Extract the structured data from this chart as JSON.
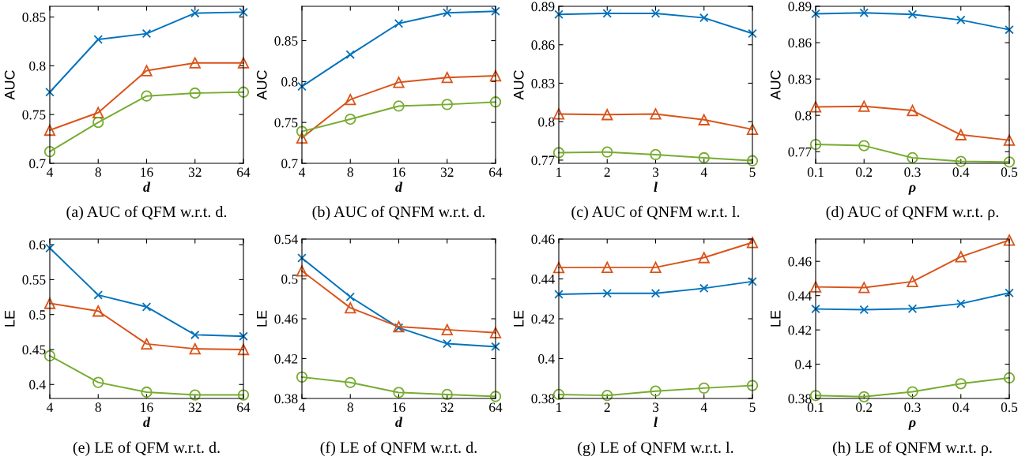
{
  "chart_data": [
    {
      "type": "line",
      "title": "(a) AUC of QFM w.r.t. d.",
      "xlabel": "d",
      "ylabel": "AUC",
      "categories": [
        "4",
        "8",
        "16",
        "32",
        "64"
      ],
      "ylim": [
        0.7,
        0.861
      ],
      "yticks": [
        0.7,
        0.75,
        0.8,
        0.85
      ],
      "grid": false,
      "line_style": "solid",
      "series": [
        {
          "color": "#0072bd",
          "marker": "cross",
          "values": [
            0.773,
            0.827,
            0.833,
            0.854,
            0.855
          ]
        },
        {
          "color": "#d95319",
          "marker": "triangle",
          "values": [
            0.734,
            0.752,
            0.795,
            0.803,
            0.803
          ]
        },
        {
          "color": "#77ac30",
          "marker": "circle",
          "values": [
            0.712,
            0.742,
            0.769,
            0.772,
            0.773
          ]
        }
      ]
    },
    {
      "type": "line",
      "title": "(b) AUC of QNFM w.r.t. d.",
      "xlabel": "d",
      "ylabel": "AUC",
      "categories": [
        "4",
        "8",
        "16",
        "32",
        "64"
      ],
      "ylim": [
        0.7,
        0.892
      ],
      "yticks": [
        0.7,
        0.75,
        0.8,
        0.85
      ],
      "grid": false,
      "line_style": "solid",
      "series": [
        {
          "color": "#0072bd",
          "marker": "cross",
          "values": [
            0.794,
            0.833,
            0.871,
            0.884,
            0.886
          ]
        },
        {
          "color": "#d95319",
          "marker": "triangle",
          "values": [
            0.731,
            0.778,
            0.799,
            0.805,
            0.807
          ]
        },
        {
          "color": "#77ac30",
          "marker": "circle",
          "values": [
            0.739,
            0.754,
            0.77,
            0.772,
            0.775
          ]
        }
      ]
    },
    {
      "type": "line",
      "title": "(c) AUC of QNFM w.r.t. l.",
      "xlabel": "l",
      "ylabel": "AUC",
      "x": [
        1,
        2,
        3,
        4,
        5
      ],
      "xlim": [
        1,
        5
      ],
      "xticks": [
        1,
        2,
        3,
        4,
        5
      ],
      "ylim": [
        0.7675,
        0.89
      ],
      "yticks": [
        0.77,
        0.8,
        0.83,
        0.86,
        0.89
      ],
      "grid": false,
      "line_style": "solid",
      "series": [
        {
          "color": "#0072bd",
          "marker": "cross",
          "values": [
            0.8837,
            0.8845,
            0.8845,
            0.881,
            0.8688
          ]
        },
        {
          "color": "#d95319",
          "marker": "triangle",
          "values": [
            0.806,
            0.8055,
            0.806,
            0.8015,
            0.794
          ]
        },
        {
          "color": "#77ac30",
          "marker": "circle",
          "values": [
            0.7758,
            0.7763,
            0.7743,
            0.7718,
            0.7695
          ]
        }
      ]
    },
    {
      "type": "line",
      "title": "(d) AUC of QNFM w.r.t. ρ.",
      "xlabel": "ρ",
      "ylabel": "AUC",
      "x": [
        0.1,
        0.2,
        0.3,
        0.4,
        0.5
      ],
      "xlim": [
        0.1,
        0.5
      ],
      "xticks": [
        0.1,
        0.2,
        0.3,
        0.4,
        0.5
      ],
      "ylim": [
        0.7604,
        0.89
      ],
      "yticks": [
        0.77,
        0.8,
        0.83,
        0.86,
        0.89
      ],
      "grid": false,
      "line_style": "solid",
      "series": [
        {
          "color": "#0072bd",
          "marker": "cross",
          "values": [
            0.8838,
            0.8846,
            0.8833,
            0.8787,
            0.8707
          ]
        },
        {
          "color": "#d95319",
          "marker": "triangle",
          "values": [
            0.807,
            0.8075,
            0.804,
            0.784,
            0.7795
          ]
        },
        {
          "color": "#77ac30",
          "marker": "circle",
          "values": [
            0.776,
            0.775,
            0.765,
            0.762,
            0.7615
          ]
        }
      ]
    },
    {
      "type": "line",
      "title": "(e) LE of QFM w.r.t. d.",
      "xlabel": "d",
      "ylabel": "LE",
      "categories": [
        "4",
        "8",
        "16",
        "32",
        "64"
      ],
      "ylim": [
        0.38,
        0.608
      ],
      "yticks": [
        0.4,
        0.45,
        0.5,
        0.55,
        0.6
      ],
      "grid": false,
      "line_style": "solid",
      "series": [
        {
          "color": "#0072bd",
          "marker": "cross",
          "values": [
            0.595,
            0.528,
            0.511,
            0.471,
            0.469
          ]
        },
        {
          "color": "#d95319",
          "marker": "triangle",
          "values": [
            0.516,
            0.505,
            0.458,
            0.451,
            0.45
          ]
        },
        {
          "color": "#77ac30",
          "marker": "circle",
          "values": [
            0.441,
            0.403,
            0.389,
            0.385,
            0.385
          ]
        }
      ]
    },
    {
      "type": "line",
      "title": "(f) LE of QNFM w.r.t. d.",
      "xlabel": "d",
      "ylabel": "LE",
      "categories": [
        "4",
        "8",
        "16",
        "32",
        "64"
      ],
      "ylim": [
        0.38,
        0.54
      ],
      "yticks": [
        0.38,
        0.42,
        0.46,
        0.5,
        0.54
      ],
      "grid": false,
      "line_style": "solid",
      "series": [
        {
          "color": "#0072bd",
          "marker": "cross",
          "values": [
            0.521,
            0.482,
            0.451,
            0.435,
            0.432
          ]
        },
        {
          "color": "#d95319",
          "marker": "triangle",
          "values": [
            0.508,
            0.471,
            0.452,
            0.449,
            0.446
          ]
        },
        {
          "color": "#77ac30",
          "marker": "circle",
          "values": [
            0.4015,
            0.396,
            0.386,
            0.384,
            0.382
          ]
        }
      ]
    },
    {
      "type": "line",
      "title": "(g) LE of QNFM w.r.t. l.",
      "xlabel": "l",
      "ylabel": "LE",
      "x": [
        1,
        2,
        3,
        4,
        5
      ],
      "xlim": [
        1,
        5
      ],
      "xticks": [
        1,
        2,
        3,
        4,
        5
      ],
      "ylim": [
        0.38,
        0.46
      ],
      "yticks": [
        0.38,
        0.4,
        0.42,
        0.44,
        0.46
      ],
      "grid": false,
      "line_style": "solid",
      "series": [
        {
          "color": "#0072bd",
          "marker": "cross",
          "values": [
            0.4323,
            0.4328,
            0.4328,
            0.4353,
            0.4387
          ]
        },
        {
          "color": "#d95319",
          "marker": "triangle",
          "values": [
            0.4457,
            0.4458,
            0.4458,
            0.4507,
            0.4583
          ]
        },
        {
          "color": "#77ac30",
          "marker": "circle",
          "values": [
            0.382,
            0.3815,
            0.3837,
            0.3852,
            0.3865
          ]
        }
      ]
    },
    {
      "type": "line",
      "title": "(h) LE of QNFM w.r.t. ρ.",
      "xlabel": "ρ",
      "ylabel": "LE",
      "x": [
        0.1,
        0.2,
        0.3,
        0.4,
        0.5
      ],
      "xlim": [
        0.1,
        0.5
      ],
      "xticks": [
        0.1,
        0.2,
        0.3,
        0.4,
        0.5
      ],
      "ylim": [
        0.38,
        0.473
      ],
      "yticks": [
        0.38,
        0.4,
        0.42,
        0.44,
        0.46
      ],
      "grid": false,
      "line_style": "solid",
      "series": [
        {
          "color": "#0072bd",
          "marker": "cross",
          "values": [
            0.4322,
            0.4318,
            0.4324,
            0.4353,
            0.4416
          ]
        },
        {
          "color": "#d95319",
          "marker": "triangle",
          "values": [
            0.4451,
            0.4447,
            0.4482,
            0.4627,
            0.4724
          ]
        },
        {
          "color": "#77ac30",
          "marker": "circle",
          "values": [
            0.3817,
            0.381,
            0.3839,
            0.3886,
            0.392
          ]
        }
      ]
    }
  ]
}
